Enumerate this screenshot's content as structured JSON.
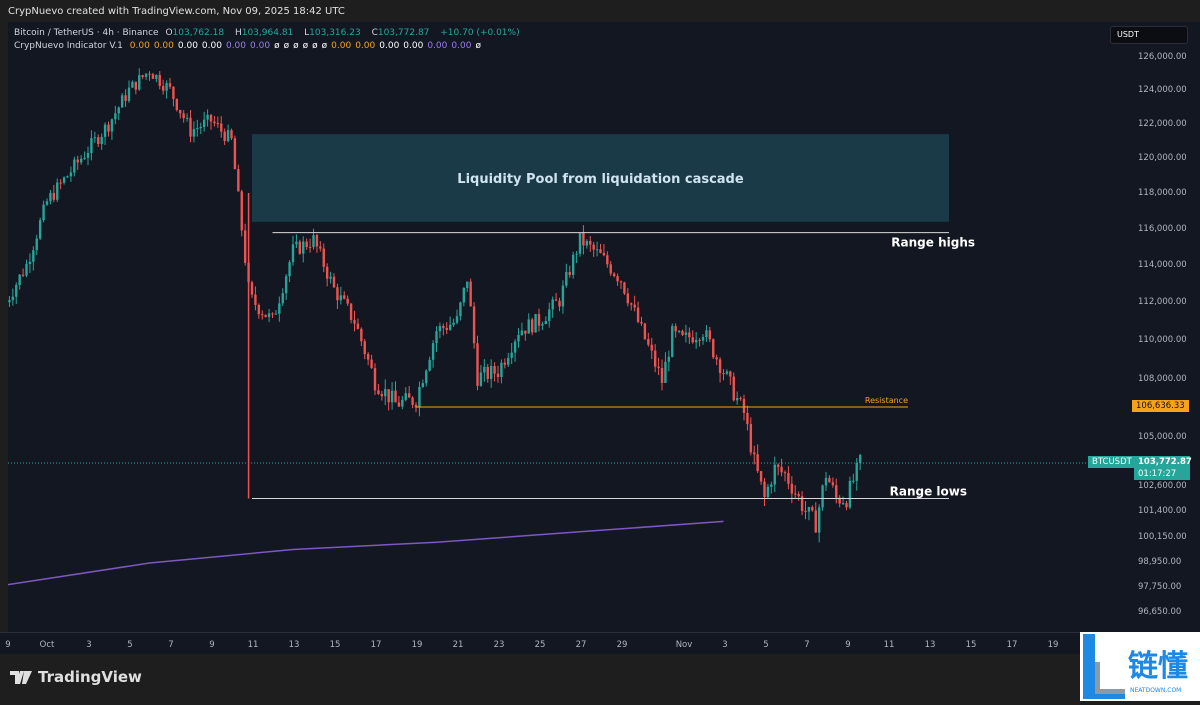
{
  "header": {
    "credit": "CrypNuevo created with TradingView.com, Nov 09, 2025 18:42 UTC"
  },
  "legend": {
    "symbol": "Bitcoin / TetherUS · 4h · Binance",
    "open_label": "O",
    "open": "103,762.18",
    "high_label": "H",
    "high": "103,964.81",
    "low_label": "L",
    "low": "103,316.23",
    "close_label": "C",
    "close": "103,772.87",
    "change": "+10.70 (+0.01%)",
    "indicator": "CrypNuevo Indicator V.1",
    "indicator_values": [
      {
        "v": "0.00",
        "c": "o"
      },
      {
        "v": "0.00",
        "c": "o"
      },
      {
        "v": "0.00",
        "c": "w"
      },
      {
        "v": "0.00",
        "c": "w"
      },
      {
        "v": "0.00",
        "c": "p"
      },
      {
        "v": "0.00",
        "c": "p"
      },
      {
        "v": "ø",
        "c": "w"
      },
      {
        "v": "ø",
        "c": "w"
      },
      {
        "v": "ø",
        "c": "w"
      },
      {
        "v": "ø",
        "c": "w"
      },
      {
        "v": "ø",
        "c": "w"
      },
      {
        "v": "ø",
        "c": "w"
      },
      {
        "v": "0.00",
        "c": "o"
      },
      {
        "v": "0.00",
        "c": "o"
      },
      {
        "v": "0.00",
        "c": "w"
      },
      {
        "v": "0.00",
        "c": "w"
      },
      {
        "v": "0.00",
        "c": "p"
      },
      {
        "v": "0.00",
        "c": "p"
      },
      {
        "v": "ø",
        "c": "w"
      }
    ]
  },
  "currency": "USDT",
  "colors": {
    "up": "#26a69a",
    "down": "#ef5350",
    "ma": "#7e57c2",
    "resistance": "#f7a21b",
    "zone": "#1b3a47",
    "bg": "#131722"
  },
  "chart_data": {
    "type": "candlestick",
    "timeframe": "4h",
    "price_ticks": [
      "126,000.00",
      "124,000.00",
      "122,000.00",
      "120,000.00",
      "118,000.00",
      "116,000.00",
      "114,000.00",
      "112,000.00",
      "110,000.00",
      "108,000.00",
      "105,000.00",
      "102,600.00",
      "101,400.00",
      "100,150.00",
      "98,950.00",
      "97,750.00",
      "96,650.00"
    ],
    "date_ticks": [
      "9",
      "Oct",
      "3",
      "5",
      "7",
      "9",
      "11",
      "13",
      "15",
      "17",
      "19",
      "21",
      "23",
      "25",
      "27",
      "29",
      "Nov",
      "3",
      "5",
      "7",
      "9",
      "11",
      "13",
      "15",
      "17",
      "19"
    ],
    "close_path": [
      [
        "2025-09-29",
        112000
      ],
      [
        "2025-09-30",
        114000
      ],
      [
        "2025-10-01",
        117500
      ],
      [
        "2025-10-02",
        119000
      ],
      [
        "2025-10-03",
        120500
      ],
      [
        "2025-10-04",
        122000
      ],
      [
        "2025-10-05",
        124000
      ],
      [
        "2025-10-06",
        125200
      ],
      [
        "2025-10-07",
        124000
      ],
      [
        "2025-10-08",
        121600
      ],
      [
        "2025-10-09",
        122200
      ],
      [
        "2025-10-10",
        121000
      ],
      [
        "2025-10-10T20",
        112700
      ],
      [
        "2025-10-11",
        112100
      ],
      [
        "2025-10-12",
        111000
      ],
      [
        "2025-10-13",
        114800
      ],
      [
        "2025-10-14",
        115400
      ],
      [
        "2025-10-15",
        112700
      ],
      [
        "2025-10-16",
        111000
      ],
      [
        "2025-10-17",
        107900
      ],
      [
        "2025-10-18",
        106800
      ],
      [
        "2025-10-19",
        107000
      ],
      [
        "2025-10-20",
        110500
      ],
      [
        "2025-10-21",
        111000
      ],
      [
        "2025-10-21T12",
        113300
      ],
      [
        "2025-10-22",
        108100
      ],
      [
        "2025-10-23",
        108400
      ],
      [
        "2025-10-24",
        110500
      ],
      [
        "2025-10-25",
        111000
      ],
      [
        "2025-10-26",
        112100
      ],
      [
        "2025-10-27",
        115400
      ],
      [
        "2025-10-28",
        114500
      ],
      [
        "2025-10-29",
        113200
      ],
      [
        "2025-10-30",
        110500
      ],
      [
        "2025-10-31",
        107900
      ],
      [
        "2025-10-31T12",
        110300
      ],
      [
        "2025-11-01",
        110000
      ],
      [
        "2025-11-02",
        110500
      ],
      [
        "2025-11-03",
        108400
      ],
      [
        "2025-11-04",
        106300
      ],
      [
        "2025-11-04T12",
        103800
      ],
      [
        "2025-11-05",
        102000
      ],
      [
        "2025-11-05T12",
        103500
      ],
      [
        "2025-11-06",
        103200
      ],
      [
        "2025-11-07",
        101400
      ],
      [
        "2025-11-07T12",
        100800
      ],
      [
        "2025-11-08",
        103200
      ],
      [
        "2025-11-08T12",
        102000
      ],
      [
        "2025-11-09",
        102000
      ],
      [
        "2025-11-09T16",
        103772.87
      ]
    ],
    "moving_average": [
      [
        "2025-09-29",
        97850
      ],
      [
        "2025-10-06",
        98900
      ],
      [
        "2025-10-13",
        99550
      ],
      [
        "2025-10-20",
        99900
      ],
      [
        "2025-10-27",
        100400
      ],
      [
        "2025-11-03",
        100900
      ]
    ],
    "annotations": {
      "zone": {
        "label": "Liquidity Pool from liquidation cascade",
        "from": "2025-10-11",
        "to": "2025-11-14",
        "top": 121400,
        "bottom": 116400
      },
      "range_high": {
        "label": "Range highs",
        "price": 115800,
        "from": "2025-10-12",
        "to": "2025-11-14"
      },
      "range_low": {
        "label": "Range lows",
        "price": 102000,
        "from": "2025-10-11",
        "to": "2025-11-14"
      },
      "resistance": {
        "label": "Resistance",
        "price": 106636.33,
        "price_label": "106,636.33",
        "from": "2025-10-19",
        "to": "2025-11-12"
      }
    },
    "last_price": {
      "symbol": "BTCUSDT",
      "price": 103772.87,
      "price_label": "103,772.87",
      "countdown": "01:17:27"
    }
  },
  "footer": {
    "brand": "TradingView",
    "watermark": "链懂",
    "watermark_sub": "NEATDOWN.COM"
  }
}
